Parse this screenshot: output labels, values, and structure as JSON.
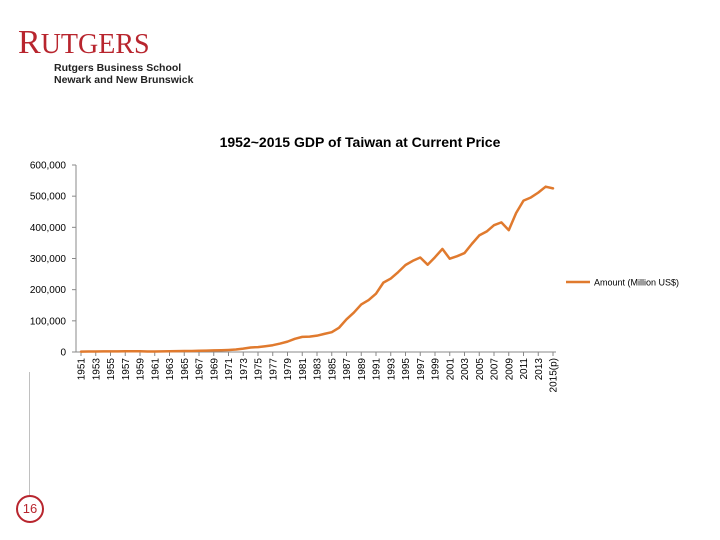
{
  "logo": {
    "name_first": "R",
    "name_rest": "UTGERS",
    "line1": "Rutgers Business School",
    "line2": "Newark and New Brunswick"
  },
  "slide_number": "16",
  "colors": {
    "brand": "#b8252e",
    "series": "#e07a2e"
  },
  "chart_data": {
    "type": "line",
    "title": "1952~2015 GDP of Taiwan at Current Price",
    "xlabel": "",
    "ylabel": "",
    "ylim": [
      0,
      600000
    ],
    "yticks": [
      "600,000",
      "500,000",
      "400,000",
      "300,000",
      "200,000",
      "100,000",
      "0"
    ],
    "ytick_values": [
      600000,
      500000,
      400000,
      300000,
      200000,
      100000,
      0
    ],
    "xtick_labels": [
      "1951",
      "1953",
      "1955",
      "1957",
      "1959",
      "1961",
      "1963",
      "1965",
      "1967",
      "1969",
      "1971",
      "1973",
      "1975",
      "1977",
      "1979",
      "1981",
      "1983",
      "1985",
      "1987",
      "1989",
      "1991",
      "1993",
      "1995",
      "1997",
      "1999",
      "2001",
      "2003",
      "2005",
      "2007",
      "2009",
      "2011",
      "2013",
      "2015(p)"
    ],
    "legend": {
      "position": "right"
    },
    "grid": false,
    "series": [
      {
        "name": "Amount (Million US$)",
        "x": [
          1951,
          1952,
          1953,
          1954,
          1955,
          1956,
          1957,
          1958,
          1959,
          1960,
          1961,
          1962,
          1963,
          1964,
          1965,
          1966,
          1967,
          1968,
          1969,
          1970,
          1971,
          1972,
          1973,
          1974,
          1975,
          1976,
          1977,
          1978,
          1979,
          1980,
          1981,
          1982,
          1983,
          1984,
          1985,
          1986,
          1987,
          1988,
          1989,
          1990,
          1991,
          1992,
          1993,
          1994,
          1995,
          1996,
          1997,
          1998,
          1999,
          2000,
          2001,
          2002,
          2003,
          2004,
          2005,
          2006,
          2007,
          2008,
          2009,
          2010,
          2011,
          2012,
          2013,
          2014,
          2015
        ],
        "values": [
          1200,
          1700,
          1700,
          1900,
          2100,
          2000,
          2200,
          2400,
          2500,
          1700,
          1800,
          2000,
          2300,
          2700,
          3000,
          3400,
          3900,
          4600,
          5300,
          5700,
          6600,
          7900,
          10800,
          14500,
          15700,
          18600,
          21800,
          27000,
          33300,
          42300,
          48500,
          49200,
          52400,
          58100,
          63600,
          78200,
          105000,
          126500,
          152600,
          166600,
          187100,
          222600,
          235600,
          256200,
          279100,
          292700,
          303300,
          280100,
          304200,
          330700,
          299300,
          307400,
          317400,
          346900,
          374100,
          386500,
          406900,
          415900,
          390800,
          446100,
          485700,
          495800,
          511300,
          530500,
          525000
        ]
      }
    ]
  }
}
